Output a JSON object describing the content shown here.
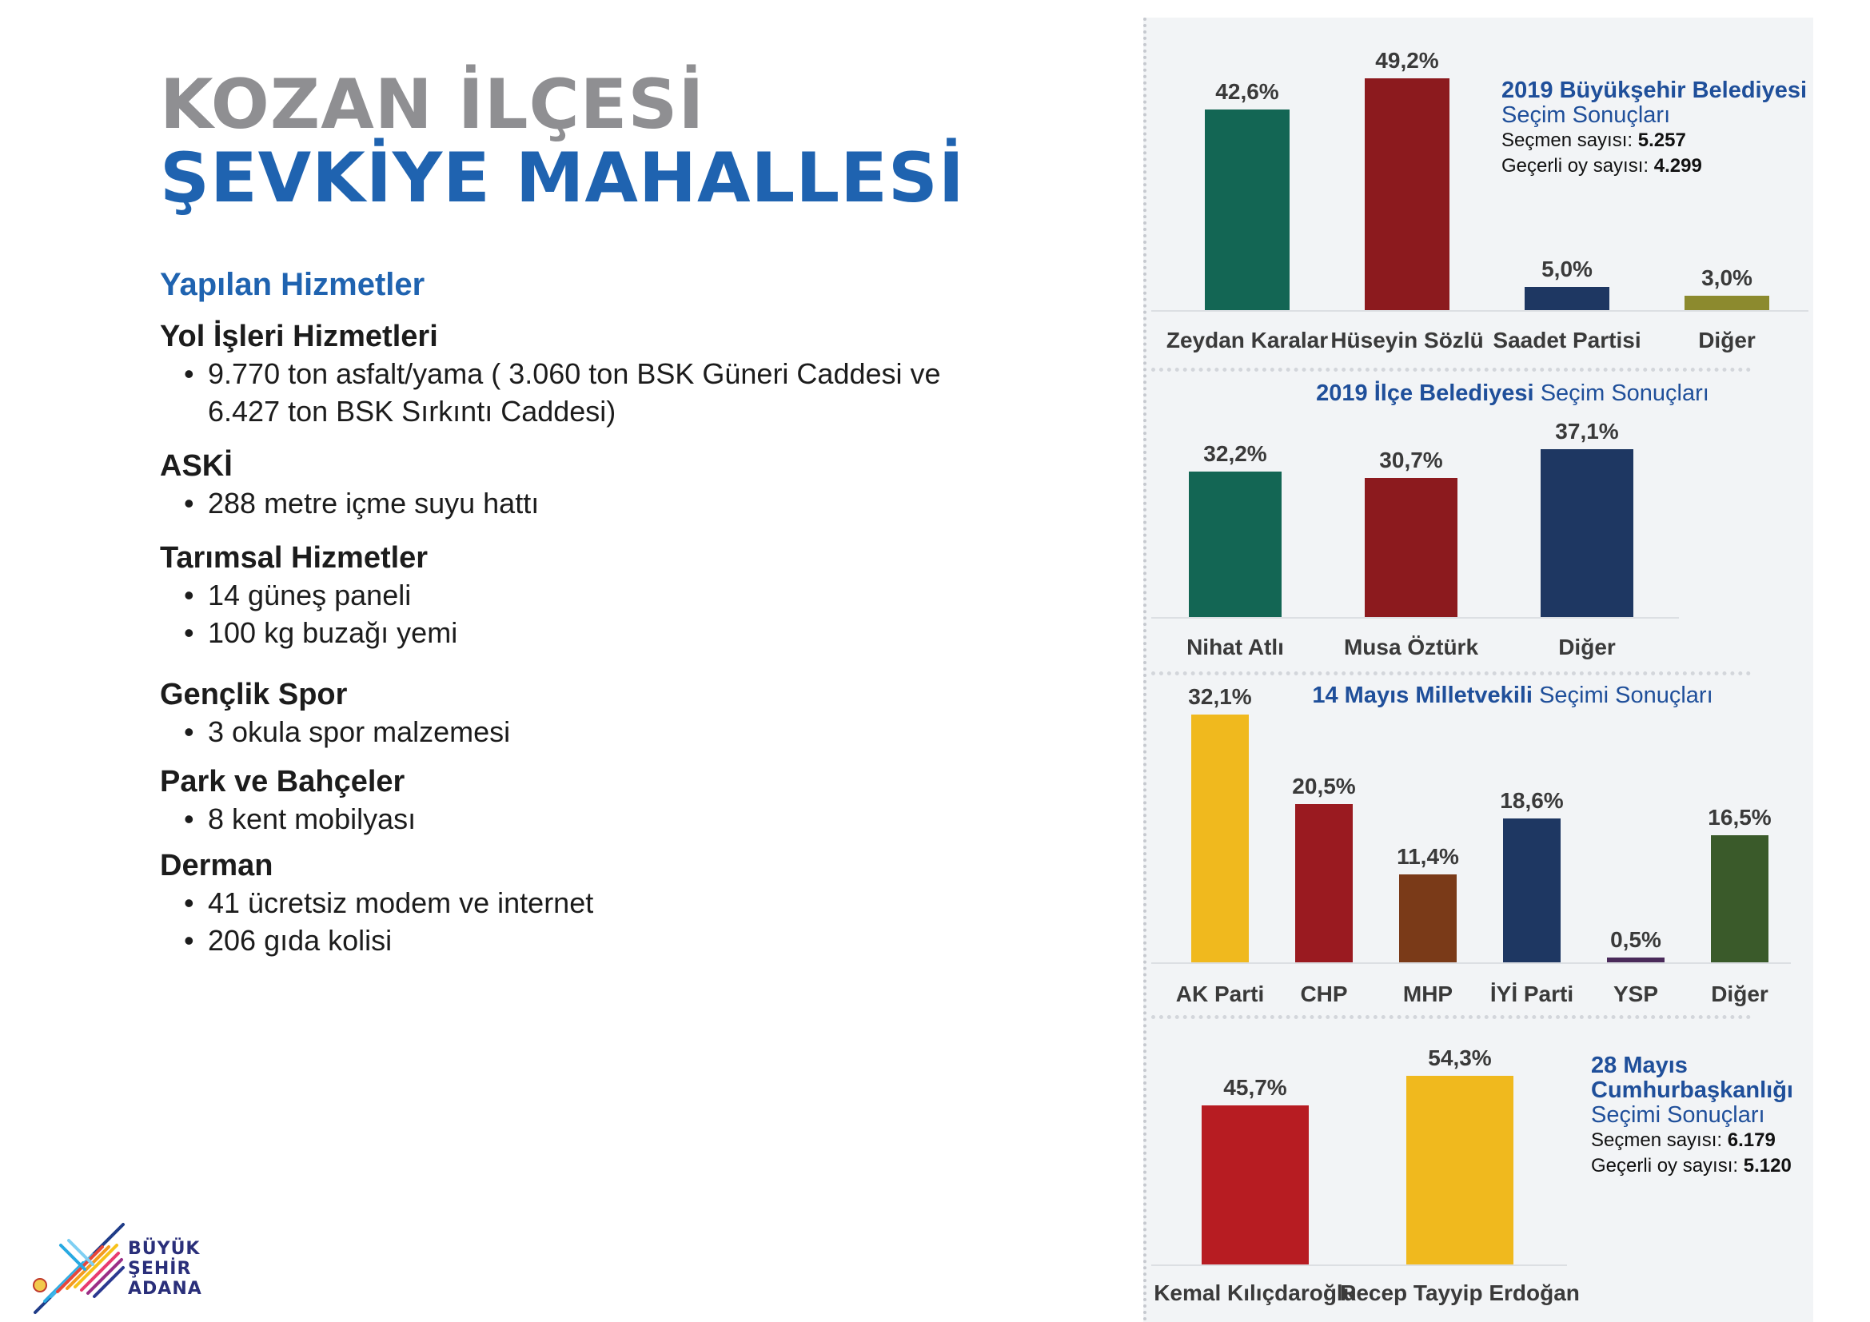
{
  "header": {
    "line1": "KOZAN İLÇESİ",
    "line2": "ŞEVKİYE MAHALLESİ"
  },
  "services": {
    "heading": "Yapılan Hizmetler",
    "sections": [
      {
        "title": "Yol İşleri Hizmetleri",
        "items": [
          "9.770 ton asfalt/yama ( 3.060 ton BSK Güneri Caddesi ve",
          "6.427 ton BSK Sırkıntı Caddesi)"
        ]
      },
      {
        "title": "ASKİ",
        "items": [
          "288 metre içme suyu hattı"
        ]
      },
      {
        "title": "Tarımsal Hizmetler",
        "items": [
          "14 güneş paneli",
          "100 kg buzağı yemi"
        ]
      },
      {
        "title": "Gençlik Spor",
        "items": [
          "3 okula spor malzemesi"
        ]
      },
      {
        "title": "Park ve Bahçeler",
        "items": [
          "8 kent mobilyası"
        ]
      },
      {
        "title": "Derman",
        "items": [
          "41 ücretsiz modem ve internet",
          "206 gıda kolisi"
        ]
      }
    ]
  },
  "logo": {
    "line1": "BÜYÜK",
    "line2": "ŞEHİR",
    "line3": "ADANA"
  },
  "chart_data": [
    {
      "type": "bar",
      "title_bold": "2019 Büyükşehir Belediyesi",
      "title_light": "Seçim Sonuçları",
      "voters_label": "Seçmen sayısı:",
      "voters_value": "5.257",
      "valid_label": "Geçerli oy sayısı:",
      "valid_value": "4.299",
      "categories": [
        "Zeydan Karalar",
        "Hüseyin Sözlü",
        "Saadet Partisi",
        "Diğer"
      ],
      "values": [
        42.6,
        49.2,
        5.0,
        3.0
      ],
      "labels": [
        "42,6%",
        "49,2%",
        "5,0%",
        "3,0%"
      ],
      "colors": [
        "#136654",
        "#8c1a1e",
        "#1e3762",
        "#8c8a2e"
      ],
      "ylim": [
        0,
        49.2
      ]
    },
    {
      "type": "bar",
      "title_bold": "2019 İlçe Belediyesi",
      "title_light": "Seçim Sonuçları",
      "categories": [
        "Nihat Atlı",
        "Musa Öztürk",
        "Diğer"
      ],
      "values": [
        32.2,
        30.7,
        37.1
      ],
      "labels": [
        "32,2%",
        "30,7%",
        "37,1%"
      ],
      "colors": [
        "#136654",
        "#8c1a1e",
        "#1e3762"
      ],
      "ylim": [
        0,
        37.1
      ]
    },
    {
      "type": "bar",
      "title_bold": "14 Mayıs Milletvekili",
      "title_light": "Seçimi Sonuçları",
      "categories": [
        "AK Parti",
        "CHP",
        "MHP",
        "İYİ Parti",
        "YSP",
        "Diğer"
      ],
      "values": [
        32.1,
        20.5,
        11.4,
        18.6,
        0.5,
        16.5
      ],
      "labels": [
        "32,1%",
        "20,5%",
        "11,4%",
        "18,6%",
        "0,5%",
        "16,5%"
      ],
      "colors": [
        "#f0b91e",
        "#9a1a20",
        "#7a3a18",
        "#1e3762",
        "#4a2a5a",
        "#3a5a2a"
      ],
      "ylim": [
        0,
        32.1
      ]
    },
    {
      "type": "bar",
      "title_bold": "28 Mayıs Cumhurbaşkanlığı",
      "title_light": "Seçimi Sonuçları",
      "voters_label": "Seçmen sayısı:",
      "voters_value": "6.179",
      "valid_label": "Geçerli oy sayısı:",
      "valid_value": "5.120",
      "categories": [
        "Kemal Kılıçdaroğlu",
        "Recep Tayyip Erdoğan"
      ],
      "values": [
        45.7,
        54.3
      ],
      "labels": [
        "45,7%",
        "54,3%"
      ],
      "colors": [
        "#b71c22",
        "#f0b91e"
      ],
      "ylim": [
        0,
        54.3
      ]
    }
  ]
}
